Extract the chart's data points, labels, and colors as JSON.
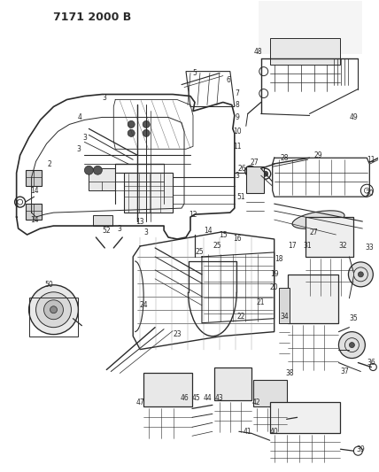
{
  "title": "7171 2000 B",
  "bg": "#ffffff",
  "lc": "#2a2a2a",
  "fig_w": 4.28,
  "fig_h": 5.33,
  "dpi": 100,
  "lfs": 5.5,
  "lfs2": 6.0
}
